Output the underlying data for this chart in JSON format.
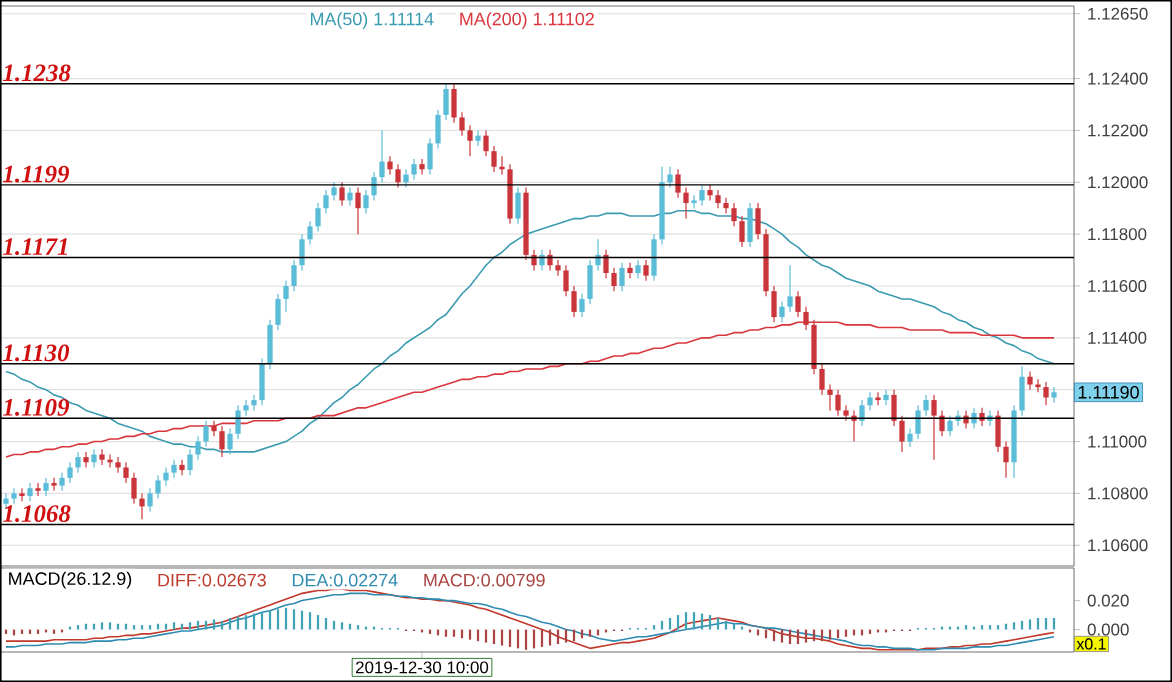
{
  "chart_data": [
    {
      "type": "candlestick",
      "categories": [
        null,
        null,
        null,
        null,
        null,
        null,
        null,
        null,
        null,
        null,
        null,
        null,
        null,
        null,
        null,
        null,
        null,
        null,
        null,
        null,
        null,
        null,
        null,
        null,
        null,
        null,
        null,
        null,
        null,
        null,
        null,
        null,
        null,
        null,
        null,
        null,
        null,
        null,
        null,
        null,
        null,
        null,
        null,
        null,
        null,
        null,
        null,
        null,
        null,
        null,
        null,
        null,
        null,
        null,
        null,
        null,
        null,
        null,
        null,
        null,
        null,
        null,
        null,
        null,
        null,
        null,
        null,
        null,
        null,
        null,
        null,
        null,
        null,
        null,
        null,
        null,
        null,
        null,
        null,
        null,
        null,
        null,
        null,
        null,
        null,
        null,
        null,
        null,
        null,
        null,
        null,
        null,
        null,
        null,
        null,
        null,
        null,
        null,
        null,
        null,
        null,
        null,
        null,
        null,
        null,
        null,
        null,
        null,
        null,
        null,
        null,
        null,
        null,
        null,
        null,
        null,
        null,
        null,
        null,
        null,
        null,
        null,
        null,
        null,
        null,
        null,
        null,
        null,
        null,
        null,
        null,
        null
      ],
      "ohlc": [
        [
          1.1076,
          1.108,
          1.1074,
          1.1078
        ],
        [
          1.1078,
          1.1082,
          1.1076,
          1.108
        ],
        [
          1.108,
          1.1082,
          1.1077,
          1.1079
        ],
        [
          1.1079,
          1.1084,
          1.1077,
          1.1082
        ],
        [
          1.1082,
          1.1084,
          1.1079,
          1.1081
        ],
        [
          1.1081,
          1.1086,
          1.1079,
          1.1084
        ],
        [
          1.1084,
          1.1086,
          1.1081,
          1.1083
        ],
        [
          1.1083,
          1.1088,
          1.1081,
          1.1086
        ],
        [
          1.1086,
          1.1092,
          1.1084,
          1.109
        ],
        [
          1.109,
          1.1096,
          1.1088,
          1.1094
        ],
        [
          1.1094,
          1.1096,
          1.109,
          1.1092
        ],
        [
          1.1092,
          1.1097,
          1.109,
          1.1095
        ],
        [
          1.1095,
          1.1097,
          1.1091,
          1.1093
        ],
        [
          1.1093,
          1.1095,
          1.109,
          1.1092
        ],
        [
          1.1092,
          1.1094,
          1.1088,
          1.109
        ],
        [
          1.109,
          1.1092,
          1.1084,
          1.1086
        ],
        [
          1.1086,
          1.1088,
          1.1076,
          1.1078
        ],
        [
          1.1078,
          1.108,
          1.107,
          1.1075
        ],
        [
          1.1075,
          1.1082,
          1.1073,
          1.108
        ],
        [
          1.108,
          1.1087,
          1.1078,
          1.1085
        ],
        [
          1.1085,
          1.109,
          1.1083,
          1.1088
        ],
        [
          1.1088,
          1.1093,
          1.1086,
          1.1091
        ],
        [
          1.1091,
          1.1093,
          1.1087,
          1.1089
        ],
        [
          1.1089,
          1.1097,
          1.1087,
          1.1095
        ],
        [
          1.1095,
          1.1102,
          1.1093,
          1.11
        ],
        [
          1.11,
          1.1108,
          1.1098,
          1.1106
        ],
        [
          1.1106,
          1.1108,
          1.1102,
          1.1104
        ],
        [
          1.1104,
          1.1106,
          1.1094,
          1.1097
        ],
        [
          1.1097,
          1.1105,
          1.1095,
          1.1103
        ],
        [
          1.1103,
          1.1114,
          1.1101,
          1.1112
        ],
        [
          1.1112,
          1.1116,
          1.111,
          1.1114
        ],
        [
          1.1114,
          1.1118,
          1.1112,
          1.1116
        ],
        [
          1.1116,
          1.1132,
          1.1114,
          1.113
        ],
        [
          1.113,
          1.1147,
          1.1128,
          1.1145
        ],
        [
          1.1145,
          1.1157,
          1.1143,
          1.1155
        ],
        [
          1.1155,
          1.1162,
          1.115,
          1.116
        ],
        [
          1.116,
          1.117,
          1.1158,
          1.1168
        ],
        [
          1.1168,
          1.118,
          1.1166,
          1.1178
        ],
        [
          1.1178,
          1.1185,
          1.1176,
          1.1183
        ],
        [
          1.1183,
          1.1192,
          1.1181,
          1.119
        ],
        [
          1.119,
          1.1197,
          1.1188,
          1.1195
        ],
        [
          1.1195,
          1.12,
          1.1193,
          1.1198
        ],
        [
          1.1198,
          1.12,
          1.1191,
          1.1193
        ],
        [
          1.1193,
          1.1198,
          1.1191,
          1.1196
        ],
        [
          1.1196,
          1.1198,
          1.118,
          1.119
        ],
        [
          1.119,
          1.1197,
          1.1188,
          1.1195
        ],
        [
          1.1195,
          1.1204,
          1.1193,
          1.1202
        ],
        [
          1.1202,
          1.122,
          1.12,
          1.1208
        ],
        [
          1.1208,
          1.121,
          1.1203,
          1.1205
        ],
        [
          1.1205,
          1.1207,
          1.1198,
          1.12
        ],
        [
          1.12,
          1.1205,
          1.1198,
          1.1203
        ],
        [
          1.1203,
          1.1209,
          1.1201,
          1.1207
        ],
        [
          1.1207,
          1.1209,
          1.1203,
          1.1205
        ],
        [
          1.1205,
          1.1217,
          1.1203,
          1.1215
        ],
        [
          1.1215,
          1.1228,
          1.1213,
          1.1226
        ],
        [
          1.1226,
          1.1238,
          1.1224,
          1.1236
        ],
        [
          1.1236,
          1.1238,
          1.1223,
          1.1225
        ],
        [
          1.1225,
          1.1227,
          1.1218,
          1.122
        ],
        [
          1.122,
          1.1222,
          1.121,
          1.1216
        ],
        [
          1.1216,
          1.122,
          1.1214,
          1.1218
        ],
        [
          1.1218,
          1.122,
          1.121,
          1.1212
        ],
        [
          1.1212,
          1.1214,
          1.1204,
          1.1206
        ],
        [
          1.1206,
          1.121,
          1.1203,
          1.1205
        ],
        [
          1.1205,
          1.1207,
          1.1184,
          1.1186
        ],
        [
          1.1186,
          1.1198,
          1.1184,
          1.1196
        ],
        [
          1.1196,
          1.1198,
          1.117,
          1.1172
        ],
        [
          1.1172,
          1.1174,
          1.1166,
          1.1168
        ],
        [
          1.1168,
          1.1174,
          1.1166,
          1.1172
        ],
        [
          1.1172,
          1.1174,
          1.1166,
          1.1168
        ],
        [
          1.1168,
          1.117,
          1.1164,
          1.1166
        ],
        [
          1.1166,
          1.1168,
          1.1156,
          1.1158
        ],
        [
          1.1158,
          1.116,
          1.1148,
          1.115
        ],
        [
          1.115,
          1.1157,
          1.1148,
          1.1155
        ],
        [
          1.1155,
          1.117,
          1.1153,
          1.1168
        ],
        [
          1.1168,
          1.1178,
          1.1166,
          1.1172
        ],
        [
          1.1172,
          1.1174,
          1.1163,
          1.1165
        ],
        [
          1.1165,
          1.1167,
          1.1158,
          1.116
        ],
        [
          1.116,
          1.1169,
          1.1158,
          1.1167
        ],
        [
          1.1167,
          1.1169,
          1.1163,
          1.1165
        ],
        [
          1.1165,
          1.117,
          1.1163,
          1.1168
        ],
        [
          1.1168,
          1.117,
          1.1162,
          1.1164
        ],
        [
          1.1164,
          1.118,
          1.1162,
          1.1178
        ],
        [
          1.1178,
          1.1206,
          1.1176,
          1.12
        ],
        [
          1.12,
          1.1206,
          1.1198,
          1.1203
        ],
        [
          1.1203,
          1.1205,
          1.1194,
          1.1196
        ],
        [
          1.1196,
          1.1198,
          1.1186,
          1.1192
        ],
        [
          1.1192,
          1.1195,
          1.119,
          1.1193
        ],
        [
          1.1193,
          1.1199,
          1.1191,
          1.1197
        ],
        [
          1.1197,
          1.1199,
          1.1193,
          1.1195
        ],
        [
          1.1195,
          1.1197,
          1.119,
          1.1192
        ],
        [
          1.1192,
          1.1194,
          1.1188,
          1.119
        ],
        [
          1.119,
          1.1192,
          1.1183,
          1.1185
        ],
        [
          1.1185,
          1.1187,
          1.1175,
          1.1177
        ],
        [
          1.1177,
          1.1192,
          1.1175,
          1.119
        ],
        [
          1.119,
          1.1192,
          1.1178,
          1.118
        ],
        [
          1.118,
          1.1182,
          1.1156,
          1.1158
        ],
        [
          1.1158,
          1.116,
          1.1146,
          1.1148
        ],
        [
          1.1148,
          1.1154,
          1.1146,
          1.1152
        ],
        [
          1.1152,
          1.1168,
          1.115,
          1.1156
        ],
        [
          1.1156,
          1.1158,
          1.1148,
          1.115
        ],
        [
          1.115,
          1.1152,
          1.1143,
          1.1145
        ],
        [
          1.1145,
          1.1147,
          1.1126,
          1.1128
        ],
        [
          1.1128,
          1.113,
          1.1118,
          1.112
        ],
        [
          1.112,
          1.1122,
          1.1112,
          1.1118
        ],
        [
          1.1118,
          1.112,
          1.111,
          1.1112
        ],
        [
          1.1112,
          1.1114,
          1.1108,
          1.111
        ],
        [
          1.111,
          1.1112,
          1.11,
          1.1108
        ],
        [
          1.1108,
          1.1116,
          1.1106,
          1.1114
        ],
        [
          1.1114,
          1.1119,
          1.1112,
          1.1117
        ],
        [
          1.1117,
          1.1119,
          1.1114,
          1.1116
        ],
        [
          1.1116,
          1.112,
          1.1114,
          1.1118
        ],
        [
          1.1118,
          1.112,
          1.1106,
          1.1108
        ],
        [
          1.1108,
          1.111,
          1.1096,
          1.11
        ],
        [
          1.11,
          1.1105,
          1.1098,
          1.1103
        ],
        [
          1.1103,
          1.1114,
          1.1101,
          1.1112
        ],
        [
          1.1112,
          1.1118,
          1.111,
          1.1116
        ],
        [
          1.1116,
          1.1118,
          1.1093,
          1.111
        ],
        [
          1.111,
          1.1112,
          1.1102,
          1.1104
        ],
        [
          1.1104,
          1.111,
          1.1102,
          1.1108
        ],
        [
          1.1108,
          1.1112,
          1.1106,
          1.111
        ],
        [
          1.111,
          1.1112,
          1.1105,
          1.1107
        ],
        [
          1.1107,
          1.1113,
          1.1105,
          1.1111
        ],
        [
          1.1111,
          1.1113,
          1.1106,
          1.1108
        ],
        [
          1.1108,
          1.1112,
          1.1106,
          1.111
        ],
        [
          1.111,
          1.1112,
          1.1096,
          1.1098
        ],
        [
          1.1098,
          1.11,
          1.1086,
          1.1092
        ],
        [
          1.1092,
          1.1114,
          1.1086,
          1.1112
        ],
        [
          1.1112,
          1.1129,
          1.111,
          1.1125
        ],
        [
          1.1125,
          1.1127,
          1.112,
          1.1122
        ],
        [
          1.1122,
          1.1124,
          1.1119,
          1.1121
        ],
        [
          1.1121,
          1.1123,
          1.1114,
          1.1117
        ],
        [
          1.1117,
          1.1121,
          1.1115,
          1.1119
        ]
      ],
      "colors": [
        "#5bbcd8",
        "#5bbcd8",
        "#c9353a",
        "#5bbcd8",
        "#c9353a",
        "#5bbcd8",
        "#c9353a",
        "#5bbcd8",
        "#5bbcd8",
        "#5bbcd8",
        "#c9353a",
        "#5bbcd8",
        "#c9353a",
        "#c9353a",
        "#c9353a",
        "#c9353a",
        "#c9353a",
        "#c9353a",
        "#5bbcd8",
        "#5bbcd8",
        "#5bbcd8",
        "#5bbcd8",
        "#c9353a",
        "#5bbcd8",
        "#5bbcd8",
        "#5bbcd8",
        "#c9353a",
        "#c9353a",
        "#5bbcd8",
        "#5bbcd8",
        "#5bbcd8",
        "#5bbcd8",
        "#5bbcd8",
        "#5bbcd8",
        "#5bbcd8",
        "#5bbcd8",
        "#5bbcd8",
        "#5bbcd8",
        "#5bbcd8",
        "#5bbcd8",
        "#5bbcd8",
        "#5bbcd8",
        "#c9353a",
        "#5bbcd8",
        "#c9353a",
        "#5bbcd8",
        "#5bbcd8",
        "#5bbcd8",
        "#c9353a",
        "#c9353a",
        "#5bbcd8",
        "#5bbcd8",
        "#c9353a",
        "#5bbcd8",
        "#5bbcd8",
        "#5bbcd8",
        "#c9353a",
        "#c9353a",
        "#c9353a",
        "#5bbcd8",
        "#c9353a",
        "#c9353a",
        "#c9353a",
        "#c9353a",
        "#5bbcd8",
        "#c9353a",
        "#c9353a",
        "#5bbcd8",
        "#c9353a",
        "#c9353a",
        "#c9353a",
        "#c9353a",
        "#5bbcd8",
        "#5bbcd8",
        "#5bbcd8",
        "#c9353a",
        "#c9353a",
        "#5bbcd8",
        "#c9353a",
        "#5bbcd8",
        "#c9353a",
        "#5bbcd8",
        "#5bbcd8",
        "#5bbcd8",
        "#c9353a",
        "#c9353a",
        "#5bbcd8",
        "#5bbcd8",
        "#c9353a",
        "#c9353a",
        "#c9353a",
        "#c9353a",
        "#c9353a",
        "#5bbcd8",
        "#c9353a",
        "#c9353a",
        "#c9353a",
        "#5bbcd8",
        "#5bbcd8",
        "#c9353a",
        "#c9353a",
        "#c9353a",
        "#c9353a",
        "#c9353a",
        "#c9353a",
        "#c9353a",
        "#c9353a",
        "#5bbcd8",
        "#5bbcd8",
        "#c9353a",
        "#5bbcd8",
        "#c9353a",
        "#c9353a",
        "#5bbcd8",
        "#5bbcd8",
        "#5bbcd8",
        "#c9353a",
        "#c9353a",
        "#5bbcd8",
        "#5bbcd8",
        "#c9353a",
        "#5bbcd8",
        "#c9353a",
        "#5bbcd8",
        "#c9353a",
        "#c9353a",
        "#5bbcd8",
        "#5bbcd8",
        "#c9353a",
        "#c9353a",
        "#c9353a",
        "#5bbcd8"
      ],
      "series": [
        {
          "name": "MA(50)  1.11114",
          "type": "line",
          "color": "#3a9bb0",
          "values": [
            1.1127,
            1.1126,
            1.1124,
            1.1123,
            1.1121,
            1.112,
            1.1118,
            1.1117,
            1.1115,
            1.1114,
            1.1112,
            1.1111,
            1.111,
            1.1109,
            1.1107,
            1.1106,
            1.1105,
            1.1104,
            1.1102,
            1.1101,
            1.11,
            1.1099,
            1.1099,
            1.1098,
            1.1098,
            1.1097,
            1.1097,
            1.1096,
            1.1096,
            1.1096,
            1.1096,
            1.1096,
            1.1097,
            1.1098,
            1.1099,
            1.11,
            1.1102,
            1.1104,
            1.1107,
            1.1109,
            1.1112,
            1.1115,
            1.1117,
            1.112,
            1.1122,
            1.1125,
            1.1128,
            1.113,
            1.1133,
            1.1135,
            1.1138,
            1.114,
            1.1142,
            1.1144,
            1.1147,
            1.1149,
            1.1153,
            1.1157,
            1.116,
            1.1164,
            1.1168,
            1.1171,
            1.1173,
            1.1176,
            1.1178,
            1.118,
            1.1181,
            1.1182,
            1.1183,
            1.1184,
            1.1185,
            1.1186,
            1.1186,
            1.1187,
            1.1187,
            1.1188,
            1.1188,
            1.1188,
            1.1187,
            1.1187,
            1.1187,
            1.1187,
            1.1188,
            1.1188,
            1.1189,
            1.1189,
            1.1189,
            1.1188,
            1.1188,
            1.1187,
            1.1187,
            1.1187,
            1.1186,
            1.1186,
            1.1185,
            1.1184,
            1.1182,
            1.118,
            1.1177,
            1.1175,
            1.1172,
            1.117,
            1.1168,
            1.1167,
            1.1165,
            1.1163,
            1.1162,
            1.1161,
            1.116,
            1.1158,
            1.1157,
            1.1156,
            1.1155,
            1.1155,
            1.1154,
            1.1153,
            1.1152,
            1.115,
            1.1149,
            1.1147,
            1.1146,
            1.1144,
            1.1143,
            1.1141,
            1.114,
            1.1138,
            1.1137,
            1.1135,
            1.1134,
            1.1132,
            1.1131,
            1.113
          ]
        },
        {
          "name": "MA(200)  1.11102",
          "type": "line",
          "color": "#d9363e",
          "values": [
            1.1094,
            1.1095,
            1.1095,
            1.1096,
            1.1096,
            1.1097,
            1.1097,
            1.1098,
            1.1098,
            1.1099,
            1.1099,
            1.11,
            1.11,
            1.1101,
            1.1101,
            1.1102,
            1.1102,
            1.1103,
            1.1103,
            1.1104,
            1.1104,
            1.1105,
            1.1105,
            1.1106,
            1.1106,
            1.1106,
            1.1106,
            1.1107,
            1.1107,
            1.1107,
            1.1107,
            1.1108,
            1.1108,
            1.1108,
            1.1108,
            1.1109,
            1.1109,
            1.1109,
            1.1109,
            1.111,
            1.111,
            1.111,
            1.1111,
            1.1112,
            1.1113,
            1.1113,
            1.1114,
            1.1115,
            1.1116,
            1.1117,
            1.1118,
            1.1119,
            1.1119,
            1.112,
            1.1121,
            1.1122,
            1.1123,
            1.1124,
            1.1124,
            1.1125,
            1.1125,
            1.1126,
            1.1126,
            1.1127,
            1.1127,
            1.1128,
            1.1128,
            1.1128,
            1.1129,
            1.1129,
            1.113,
            1.113,
            1.113,
            1.1131,
            1.1131,
            1.1132,
            1.1133,
            1.1133,
            1.1134,
            1.1134,
            1.1135,
            1.1136,
            1.1136,
            1.1137,
            1.1138,
            1.1138,
            1.1139,
            1.114,
            1.114,
            1.1141,
            1.1141,
            1.1142,
            1.1142,
            1.1143,
            1.1143,
            1.1144,
            1.1144,
            1.1145,
            1.1145,
            1.1146,
            1.1146,
            1.1146,
            1.1146,
            1.1146,
            1.1146,
            1.1145,
            1.1145,
            1.1145,
            1.1145,
            1.1144,
            1.1144,
            1.1144,
            1.1144,
            1.1143,
            1.1143,
            1.1143,
            1.1143,
            1.1143,
            1.1142,
            1.1142,
            1.1142,
            1.1142,
            1.1141,
            1.1141,
            1.1141,
            1.1141,
            1.1141,
            1.114,
            1.114,
            1.114,
            1.114,
            1.114
          ]
        }
      ],
      "ylim": [
        1.1052,
        1.1268
      ],
      "yticks": [
        {
          "value": 1.1265,
          "label": "1.12650"
        },
        {
          "value": 1.124,
          "label": "1.12400"
        },
        {
          "value": 1.122,
          "label": "1.12200"
        },
        {
          "value": 1.12,
          "label": "1.12000"
        },
        {
          "value": 1.118,
          "label": "1.11800"
        },
        {
          "value": 1.116,
          "label": "1.11600"
        },
        {
          "value": 1.114,
          "label": "1.11400"
        },
        {
          "value": 1.112,
          "label": null
        },
        {
          "value": 1.11,
          "label": "1.11000"
        },
        {
          "value": 1.108,
          "label": "1.10800"
        },
        {
          "value": 1.106,
          "label": "1.10600"
        }
      ],
      "ref_lines": [
        {
          "axis": "y",
          "value": 1.1238,
          "label": "1.1238",
          "color": "#000000"
        },
        {
          "axis": "y",
          "value": 1.1199,
          "label": "1.1199",
          "color": "#000000"
        },
        {
          "axis": "y",
          "value": 1.1171,
          "label": "1.1171",
          "color": "#000000"
        },
        {
          "axis": "y",
          "value": 1.113,
          "label": "1.1130",
          "color": "#000000"
        },
        {
          "axis": "y",
          "value": 1.1109,
          "label": "1.1109",
          "color": "#000000"
        },
        {
          "axis": "y",
          "value": 1.1068,
          "label": "1.1068",
          "color": "#000000"
        }
      ],
      "annotations": [
        "1.11190"
      ],
      "grid": "y",
      "legend": "top",
      "tick_labels": "y"
    },
    {
      "type": "line",
      "title": "MACD(26.12.9)",
      "categories": [
        null,
        null,
        null,
        null,
        null,
        null,
        null,
        null,
        null,
        null,
        null,
        null,
        null,
        null,
        null,
        null,
        null,
        null,
        null,
        null,
        null,
        null,
        null,
        null,
        null,
        null,
        null,
        null,
        null,
        null,
        null,
        null,
        null,
        null,
        null,
        null,
        null,
        null,
        null,
        null,
        null,
        null,
        null,
        null,
        null,
        null,
        null,
        null,
        null,
        null,
        null,
        null,
        "2019-12-30 10:00",
        null,
        null,
        null,
        null,
        null,
        null,
        null,
        null,
        null,
        null,
        null,
        null,
        null,
        null,
        null,
        null,
        null,
        null,
        null,
        null,
        null,
        null,
        null,
        null,
        null,
        null,
        null,
        null,
        null,
        null,
        null,
        null,
        null,
        null,
        null,
        null,
        null,
        null,
        null,
        null,
        null,
        null,
        null,
        null,
        null,
        null,
        null,
        null,
        null,
        null,
        null,
        null,
        null,
        null,
        null,
        null,
        null,
        null,
        null,
        null,
        null,
        null,
        null,
        null,
        null,
        null,
        null,
        null,
        null,
        null,
        null,
        null,
        null,
        null,
        null,
        null,
        null,
        null,
        null
      ],
      "series": [
        {
          "name": "DIFF:0.02673",
          "type": "line",
          "color": "#c0392b",
          "values": [
            -0.008,
            -0.008,
            -0.008,
            -0.008,
            -0.008,
            -0.008,
            -0.007,
            -0.007,
            -0.007,
            -0.007,
            -0.007,
            -0.006,
            -0.006,
            -0.005,
            -0.005,
            -0.004,
            -0.004,
            -0.003,
            -0.003,
            -0.002,
            -0.001,
            0,
            0.001,
            0.001,
            0.002,
            0.003,
            0.004,
            0.005,
            0.007,
            0.009,
            0.011,
            0.013,
            0.015,
            0.017,
            0.019,
            0.021,
            0.023,
            0.025,
            0.026,
            0.027,
            0.027,
            0.028,
            0.028,
            0.027,
            0.027,
            0.027,
            0.026,
            0.025,
            0.024,
            0.023,
            0.022,
            0.022,
            0.021,
            0.021,
            0.02,
            0.02,
            0.019,
            0.018,
            0.017,
            0.015,
            0.014,
            0.012,
            0.01,
            0.008,
            0.006,
            0.004,
            0.002,
            0,
            -0.002,
            -0.005,
            -0.007,
            -0.009,
            -0.011,
            -0.013,
            -0.012,
            -0.011,
            -0.01,
            -0.009,
            -0.009,
            -0.008,
            -0.007,
            -0.006,
            -0.004,
            -0.002,
            0.001,
            0.004,
            0.005,
            0.006,
            0.007,
            0.008,
            0.007,
            0.006,
            0.005,
            0.003,
            0.002,
            0.001,
            -0.001,
            -0.003,
            -0.004,
            -0.005,
            -0.006,
            -0.006,
            -0.007,
            -0.008,
            -0.01,
            -0.011,
            -0.012,
            -0.013,
            -0.013,
            -0.014,
            -0.014,
            -0.014,
            -0.014,
            -0.014,
            -0.014,
            -0.013,
            -0.013,
            -0.013,
            -0.012,
            -0.012,
            -0.011,
            -0.011,
            -0.01,
            -0.01,
            -0.009,
            -0.008,
            -0.007,
            -0.006,
            -0.005,
            -0.004,
            -0.003,
            -0.002
          ]
        },
        {
          "name": "DEA:0.02274",
          "type": "line",
          "color": "#2e8bb0",
          "values": [
            -0.012,
            -0.012,
            -0.011,
            -0.011,
            -0.011,
            -0.01,
            -0.01,
            -0.01,
            -0.009,
            -0.009,
            -0.009,
            -0.008,
            -0.008,
            -0.008,
            -0.007,
            -0.007,
            -0.006,
            -0.006,
            -0.005,
            -0.004,
            -0.003,
            -0.002,
            -0.001,
            -0.001,
            0,
            0.001,
            0.002,
            0.003,
            0.005,
            0.007,
            0.008,
            0.01,
            0.012,
            0.013,
            0.015,
            0.017,
            0.018,
            0.02,
            0.021,
            0.022,
            0.023,
            0.024,
            0.024,
            0.025,
            0.025,
            0.025,
            0.024,
            0.024,
            0.024,
            0.023,
            0.023,
            0.022,
            0.022,
            0.021,
            0.021,
            0.02,
            0.02,
            0.019,
            0.018,
            0.018,
            0.017,
            0.015,
            0.014,
            0.012,
            0.01,
            0.009,
            0.007,
            0.005,
            0.004,
            0.002,
            0,
            -0.001,
            -0.003,
            -0.004,
            -0.006,
            -0.007,
            -0.008,
            -0.007,
            -0.006,
            -0.005,
            -0.005,
            -0.004,
            -0.003,
            -0.002,
            -0.001,
            0,
            0.001,
            0.002,
            0.003,
            0.004,
            0.005,
            0.004,
            0.004,
            0.003,
            0.002,
            0.001,
            0.001,
            0,
            -0.001,
            -0.002,
            -0.003,
            -0.004,
            -0.005,
            -0.006,
            -0.007,
            -0.008,
            -0.01,
            -0.011,
            -0.011,
            -0.012,
            -0.012,
            -0.013,
            -0.013,
            -0.013,
            -0.014,
            -0.014,
            -0.014,
            -0.013,
            -0.013,
            -0.013,
            -0.013,
            -0.012,
            -0.012,
            -0.012,
            -0.011,
            -0.011,
            -0.01,
            -0.009,
            -0.008,
            -0.007,
            -0.006,
            -0.005
          ]
        },
        {
          "name": "MACD:0.00799",
          "type": "bar",
          "values": [
            -0.003,
            -0.004,
            -0.003,
            -0.003,
            -0.003,
            -0.002,
            -0.003,
            -0.002,
            0.002,
            0.003,
            0.004,
            0.004,
            0.005,
            0.005,
            0.004,
            0.004,
            0.003,
            0.003,
            0.003,
            0.004,
            0.004,
            0.005,
            0.004,
            0.005,
            0.006,
            0.006,
            0.007,
            0.006,
            0.008,
            0.009,
            0.01,
            0.011,
            0.012,
            0.013,
            0.014,
            0.015,
            0.014,
            0.013,
            0.012,
            0.01,
            0.008,
            0.006,
            0.005,
            0.004,
            0.003,
            0.002,
            0.002,
            0.001,
            0.001,
            0.001,
            -0.001,
            -0.001,
            -0.002,
            -0.003,
            -0.004,
            -0.005,
            -0.005,
            -0.006,
            -0.007,
            -0.008,
            -0.009,
            -0.01,
            -0.011,
            -0.012,
            -0.013,
            -0.014,
            -0.013,
            -0.012,
            -0.011,
            -0.01,
            -0.009,
            -0.008,
            -0.006,
            -0.005,
            -0.004,
            -0.002,
            -0.001,
            -0.001,
            0.001,
            0.001,
            0.001,
            0.003,
            0.006,
            0.008,
            0.01,
            0.012,
            0.012,
            0.011,
            0.01,
            0.008,
            0.006,
            0.004,
            0.002,
            -0.002,
            -0.004,
            -0.006,
            -0.008,
            -0.009,
            -0.01,
            -0.01,
            -0.009,
            -0.008,
            -0.008,
            -0.007,
            -0.006,
            -0.005,
            -0.004,
            -0.004,
            -0.003,
            -0.002,
            -0.002,
            -0.001,
            -0.001,
            -0.001,
            0.001,
            0.001,
            0.001,
            0.002,
            0.002,
            0.002,
            0.003,
            0.002,
            0.003,
            0.003,
            0.003,
            0.004,
            0.005,
            0.006,
            0.007,
            0.008,
            0.008,
            0.008
          ],
          "colors": [
            "#a94442",
            "#a94442",
            "#a94442",
            "#a94442",
            "#a94442",
            "#a94442",
            "#a94442",
            "#a94442",
            "#3fa3b5",
            "#3fa3b5",
            "#3fa3b5",
            "#3fa3b5",
            "#3fa3b5",
            "#3fa3b5",
            "#3fa3b5",
            "#3fa3b5",
            "#3fa3b5",
            "#3fa3b5",
            "#3fa3b5",
            "#3fa3b5",
            "#3fa3b5",
            "#3fa3b5",
            "#3fa3b5",
            "#3fa3b5",
            "#3fa3b5",
            "#3fa3b5",
            "#3fa3b5",
            "#3fa3b5",
            "#3fa3b5",
            "#3fa3b5",
            "#3fa3b5",
            "#3fa3b5",
            "#3fa3b5",
            "#3fa3b5",
            "#3fa3b5",
            "#3fa3b5",
            "#3fa3b5",
            "#3fa3b5",
            "#3fa3b5",
            "#3fa3b5",
            "#3fa3b5",
            "#3fa3b5",
            "#3fa3b5",
            "#3fa3b5",
            "#3fa3b5",
            "#3fa3b5",
            "#3fa3b5",
            "#3fa3b5",
            "#3fa3b5",
            "#3fa3b5",
            "#a94442",
            "#a94442",
            "#a94442",
            "#a94442",
            "#a94442",
            "#a94442",
            "#a94442",
            "#a94442",
            "#a94442",
            "#a94442",
            "#a94442",
            "#a94442",
            "#a94442",
            "#a94442",
            "#a94442",
            "#a94442",
            "#a94442",
            "#a94442",
            "#a94442",
            "#a94442",
            "#a94442",
            "#a94442",
            "#a94442",
            "#a94442",
            "#a94442",
            "#a94442",
            "#a94442",
            "#a94442",
            "#3fa3b5",
            "#3fa3b5",
            "#3fa3b5",
            "#3fa3b5",
            "#3fa3b5",
            "#3fa3b5",
            "#3fa3b5",
            "#3fa3b5",
            "#3fa3b5",
            "#3fa3b5",
            "#3fa3b5",
            "#3fa3b5",
            "#3fa3b5",
            "#3fa3b5",
            "#3fa3b5",
            "#a94442",
            "#a94442",
            "#a94442",
            "#a94442",
            "#a94442",
            "#a94442",
            "#a94442",
            "#a94442",
            "#a94442",
            "#a94442",
            "#a94442",
            "#a94442",
            "#a94442",
            "#a94442",
            "#a94442",
            "#a94442",
            "#a94442",
            "#a94442",
            "#a94442",
            "#a94442",
            "#a94442",
            "#3fa3b5",
            "#3fa3b5",
            "#3fa3b5",
            "#3fa3b5",
            "#3fa3b5",
            "#3fa3b5",
            "#3fa3b5",
            "#3fa3b5",
            "#3fa3b5",
            "#3fa3b5",
            "#3fa3b5",
            "#3fa3b5",
            "#3fa3b5",
            "#3fa3b5",
            "#3fa3b5",
            "#3fa3b5",
            "#3fa3b5",
            "#3fa3b5"
          ]
        }
      ],
      "ylim": [
        -0.0155,
        0.0425
      ],
      "yticks": [
        {
          "value": 0.02,
          "label": "0.020"
        },
        {
          "value": 0,
          "label": "0.000"
        }
      ],
      "annotations": [
        "x0.1"
      ],
      "legend": "top left"
    }
  ]
}
